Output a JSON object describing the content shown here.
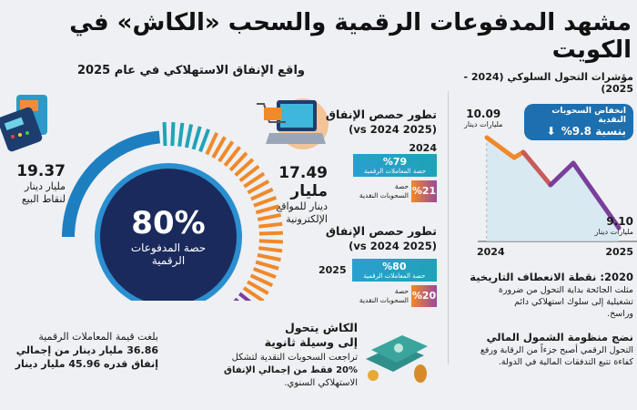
{
  "title": "مشهد المدفوعات الرقمية والسحب «الكاش» في الكويت",
  "subtitle": "واقع الإنفاق الاستهلاكي في عام 2025",
  "center": {
    "value": "80%",
    "label1": "حصة المدفوعات",
    "label2": "الرقمية"
  },
  "pos_stat": {
    "value": "19.37",
    "line1": "مليار دينار",
    "line2": "لنقاط البيع"
  },
  "online_stat": {
    "value": "17.49 مليار",
    "line1": "دينار للمواقع",
    "line2": "الإلكترونية"
  },
  "summary": {
    "line1": "بلغت قيمة المعاملات الرقمية",
    "line2": "36.86 مليار دينار من إجمالي",
    "line3": "إنفاق قدره 45.96 مليار دينار"
  },
  "cash": {
    "heading1": "الكاش يتحول",
    "heading2": "إلى وسيلة ثانوية",
    "text1": "تراجعت السحوبات النقدية لتشكل",
    "text2": "20% فقط من إجمالي الإنفاق",
    "text3": "الاستهلاكي السنوي."
  },
  "shares": [
    {
      "heading": "تطور حصص الإنفاق",
      "sub": "(2025 vs 2024)",
      "year": "2024",
      "digital": "%79",
      "digital_label": "حصة المعاملات الرقمية",
      "cash": "%21",
      "cash_label1": "حصة",
      "cash_label2": "السحوبات النقدية",
      "digital_pct": 79
    },
    {
      "heading": "تطور حصص الإنفاق",
      "sub": "(2025 vs 2024)",
      "year": "2025",
      "digital": "%80",
      "digital_label": "حصة المعاملات الرقمية",
      "cash": "%20",
      "cash_label1": "حصة",
      "cash_label2": "السحوبات النقدية",
      "digital_pct": 80
    }
  ],
  "right_panel": {
    "title": "مؤشرات التحول السلوكي (2024 - 2025)",
    "badge_line1": "انخفاض السحوبات النقدية",
    "badge_line2": "بنسبة 9.8%",
    "badge_arrow": "arrow-down-icon",
    "start": {
      "value": "10.09",
      "unit": "مليارات دينار",
      "year": "2024"
    },
    "end": {
      "value": "9.10",
      "unit": "مليارات دينار",
      "year": "2025"
    },
    "section1": {
      "heading": "2020: نقطة الانعطاف التاريخية",
      "text": [
        "مثلت الجائحة بداية التحول من ضرورة",
        "تشغيلية إلى سلوك استهلاكي دائم",
        "وراسخ."
      ]
    },
    "section2": {
      "heading": "نضج منظومة الشمول المالي",
      "text": [
        "التحول الرقمي أصبح جزءاً من الرقابة ورفع",
        "كفاءة تتبع التدفقات المالية في الدولة."
      ]
    }
  },
  "chart_data": {
    "type": "line",
    "x": [
      "2024",
      "2025"
    ],
    "values": [
      10.09,
      9.1
    ],
    "ylabel": "مليارات دينار"
  },
  "colors": {
    "navy": "#1b2a5c",
    "blue": "#1d7fc0",
    "teal": "#1fa3b8",
    "orange": "#f0892a",
    "purple": "#7a3f9a"
  }
}
